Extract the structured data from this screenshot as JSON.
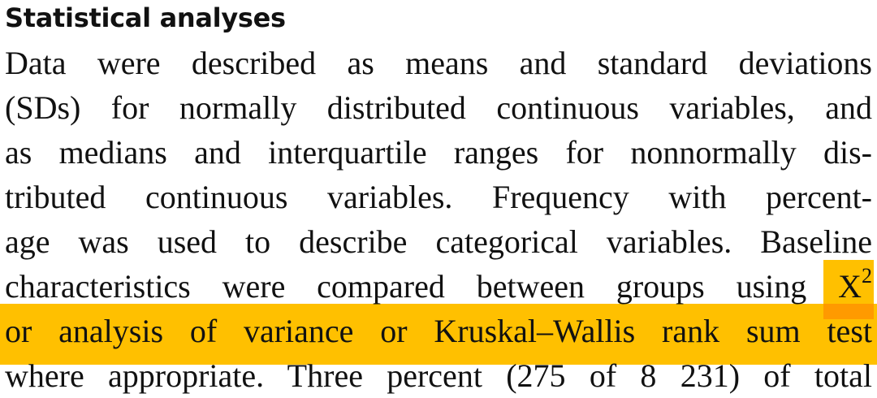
{
  "section": {
    "heading": "Statistical analyses",
    "lines": [
      "Data were described as means and standard deviations",
      "(SDs) for normally distributed continuous variables, and",
      "as medians and interquartile ranges for nonnormally dis-",
      "tributed continuous variables. Frequency with percent-",
      "age was used to describe categorical variables. Baseline",
      "characteristics were compared between groups using",
      "or analysis of variance or Kruskal–Wallis rank sum test",
      "where appropriate. Three percent (275 of 8 231) of total"
    ],
    "chi_symbol": "X",
    "chi_superscript": "2"
  },
  "highlight": {
    "color": "#FFC000",
    "overlap_color": "#FF9A00"
  }
}
